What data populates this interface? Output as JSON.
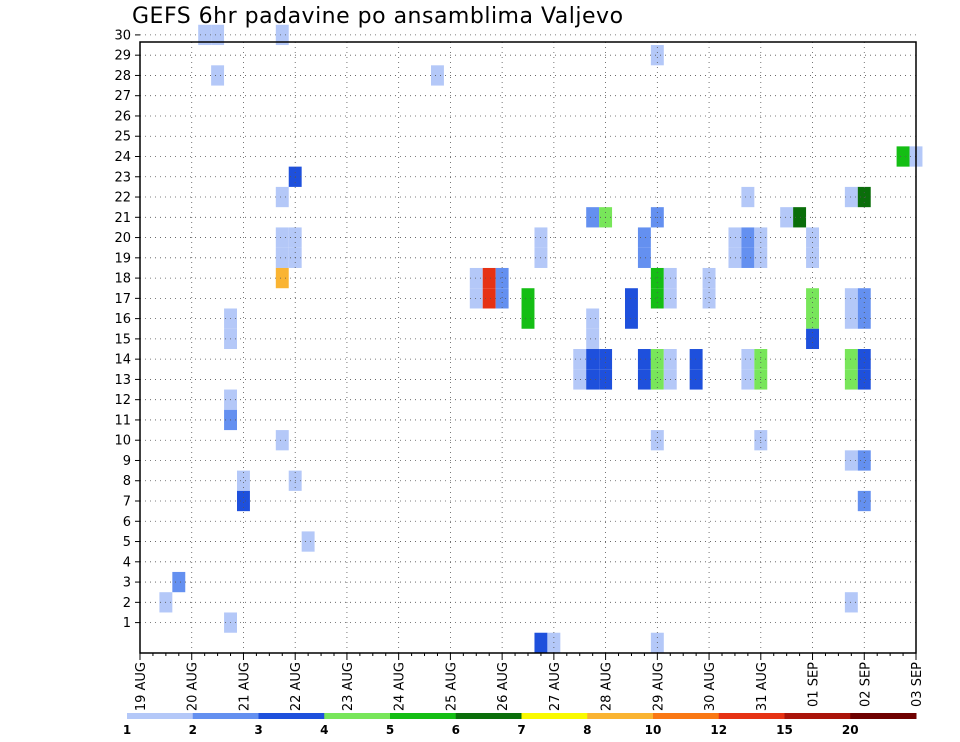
{
  "chart_data": {
    "type": "heatmap",
    "title": "GEFS 6hr padavine po ansamblima Valjevo",
    "y_categories": [
      1,
      2,
      3,
      4,
      5,
      6,
      7,
      8,
      9,
      10,
      11,
      12,
      13,
      14,
      15,
      16,
      17,
      18,
      19,
      20,
      21,
      22,
      23,
      24,
      25,
      26,
      27,
      28,
      29,
      30
    ],
    "x_tick_labels": [
      "19 AUG",
      "20 AUG",
      "21 AUG",
      "22 AUG",
      "23 AUG",
      "24 AUG",
      "25 AUG",
      "26 AUG",
      "27 AUG",
      "28 AUG",
      "29 AUG",
      "30 AUG",
      "31 AUG",
      "01 SEP",
      "02 SEP",
      "03 SEP"
    ],
    "x_range": [
      "2019-08-19 00Z",
      "2019-09-03 00Z"
    ],
    "time_step_hours": 6,
    "grid": true,
    "legend": {
      "position": "bottom",
      "labels": [
        "1",
        "2",
        "3",
        "4",
        "5",
        "6",
        "7",
        "8",
        "10",
        "12",
        "15",
        "20"
      ],
      "colors": [
        "#b4c8f8",
        "#6490f0",
        "#1e50dc",
        "#78e65a",
        "#14be14",
        "#0a6e0a",
        "#fafa00",
        "#fab432",
        "#fa7814",
        "#e63214",
        "#aa140a",
        "#6e0000"
      ]
    },
    "cells": [
      {
        "member": 30,
        "time": "20 AUG 06Z",
        "color": "#b4c8f8"
      },
      {
        "member": 30,
        "time": "20 AUG 12Z",
        "color": "#b4c8f8"
      },
      {
        "member": 30,
        "time": "21 AUG 18Z",
        "color": "#b4c8f8"
      },
      {
        "member": 29,
        "time": "29 AUG 00Z",
        "color": "#b4c8f8"
      },
      {
        "member": 28,
        "time": "20 AUG 12Z",
        "color": "#b4c8f8"
      },
      {
        "member": 28,
        "time": "24 AUG 18Z",
        "color": "#b4c8f8"
      },
      {
        "member": 24,
        "time": "02 SEP 18Z",
        "color": "#14be14"
      },
      {
        "member": 24,
        "time": "03 SEP 00Z",
        "color": "#b4c8f8"
      },
      {
        "member": 23,
        "time": "22 AUG 00Z",
        "color": "#1e50dc"
      },
      {
        "member": 22,
        "time": "21 AUG 18Z",
        "color": "#b4c8f8"
      },
      {
        "member": 22,
        "time": "30 AUG 18Z",
        "color": "#b4c8f8"
      },
      {
        "member": 22,
        "time": "01 SEP 18Z",
        "color": "#b4c8f8"
      },
      {
        "member": 22,
        "time": "02 SEP 00Z",
        "color": "#0a6e0a"
      },
      {
        "member": 21,
        "time": "27 AUG 18Z",
        "color": "#6490f0"
      },
      {
        "member": 21,
        "time": "28 AUG 00Z",
        "color": "#78e65a"
      },
      {
        "member": 21,
        "time": "29 AUG 00Z",
        "color": "#6490f0"
      },
      {
        "member": 21,
        "time": "31 AUG 12Z",
        "color": "#b4c8f8"
      },
      {
        "member": 21,
        "time": "31 AUG 18Z",
        "color": "#0a6e0a"
      },
      {
        "member": 20,
        "time": "21 AUG 18Z",
        "color": "#b4c8f8"
      },
      {
        "member": 20,
        "time": "22 AUG 00Z",
        "color": "#b4c8f8"
      },
      {
        "member": 20,
        "time": "26 AUG 18Z",
        "color": "#b4c8f8"
      },
      {
        "member": 20,
        "time": "28 AUG 18Z",
        "color": "#6490f0"
      },
      {
        "member": 20,
        "time": "30 AUG 12Z",
        "color": "#b4c8f8"
      },
      {
        "member": 20,
        "time": "30 AUG 18Z",
        "color": "#6490f0"
      },
      {
        "member": 20,
        "time": "31 AUG 00Z",
        "color": "#b4c8f8"
      },
      {
        "member": 20,
        "time": "01 SEP 00Z",
        "color": "#b4c8f8"
      },
      {
        "member": 19,
        "time": "21 AUG 18Z",
        "color": "#b4c8f8"
      },
      {
        "member": 19,
        "time": "22 AUG 00Z",
        "color": "#b4c8f8"
      },
      {
        "member": 19,
        "time": "26 AUG 18Z",
        "color": "#b4c8f8"
      },
      {
        "member": 19,
        "time": "28 AUG 18Z",
        "color": "#6490f0"
      },
      {
        "member": 19,
        "time": "30 AUG 12Z",
        "color": "#b4c8f8"
      },
      {
        "member": 19,
        "time": "30 AUG 18Z",
        "color": "#6490f0"
      },
      {
        "member": 19,
        "time": "31 AUG 00Z",
        "color": "#b4c8f8"
      },
      {
        "member": 19,
        "time": "01 SEP 00Z",
        "color": "#b4c8f8"
      },
      {
        "member": 18,
        "time": "21 AUG 18Z",
        "color": "#fab432"
      },
      {
        "member": 18,
        "time": "25 AUG 12Z",
        "color": "#b4c8f8"
      },
      {
        "member": 18,
        "time": "25 AUG 18Z",
        "color": "#e63214"
      },
      {
        "member": 18,
        "time": "26 AUG 00Z",
        "color": "#6490f0"
      },
      {
        "member": 18,
        "time": "29 AUG 00Z",
        "color": "#14be14"
      },
      {
        "member": 18,
        "time": "29 AUG 06Z",
        "color": "#b4c8f8"
      },
      {
        "member": 18,
        "time": "30 AUG 00Z",
        "color": "#b4c8f8"
      },
      {
        "member": 17,
        "time": "25 AUG 12Z",
        "color": "#b4c8f8"
      },
      {
        "member": 17,
        "time": "25 AUG 18Z",
        "color": "#e63214"
      },
      {
        "member": 17,
        "time": "26 AUG 00Z",
        "color": "#6490f0"
      },
      {
        "member": 17,
        "time": "29 AUG 00Z",
        "color": "#14be14"
      },
      {
        "member": 17,
        "time": "29 AUG 06Z",
        "color": "#b4c8f8"
      },
      {
        "member": 17,
        "time": "30 AUG 00Z",
        "color": "#b4c8f8"
      },
      {
        "member": 17,
        "time": "26 AUG 12Z",
        "color": "#14be14"
      },
      {
        "member": 17,
        "time": "28 AUG 12Z",
        "color": "#1e50dc"
      },
      {
        "member": 17,
        "time": "01 SEP 00Z",
        "color": "#78e65a"
      },
      {
        "member": 17,
        "time": "01 SEP 18Z",
        "color": "#b4c8f8"
      },
      {
        "member": 17,
        "time": "02 SEP 00Z",
        "color": "#6490f0"
      },
      {
        "member": 16,
        "time": "20 AUG 18Z",
        "color": "#b4c8f8"
      },
      {
        "member": 16,
        "time": "26 AUG 12Z",
        "color": "#14be14"
      },
      {
        "member": 16,
        "time": "27 AUG 18Z",
        "color": "#b4c8f8"
      },
      {
        "member": 16,
        "time": "28 AUG 12Z",
        "color": "#1e50dc"
      },
      {
        "member": 16,
        "time": "01 SEP 00Z",
        "color": "#78e65a"
      },
      {
        "member": 16,
        "time": "01 SEP 18Z",
        "color": "#b4c8f8"
      },
      {
        "member": 16,
        "time": "02 SEP 00Z",
        "color": "#6490f0"
      },
      {
        "member": 15,
        "time": "20 AUG 18Z",
        "color": "#b4c8f8"
      },
      {
        "member": 15,
        "time": "27 AUG 18Z",
        "color": "#b4c8f8"
      },
      {
        "member": 15,
        "time": "01 SEP 00Z",
        "color": "#1e50dc"
      },
      {
        "member": 14,
        "time": "27 AUG 12Z",
        "color": "#b4c8f8"
      },
      {
        "member": 14,
        "time": "27 AUG 18Z",
        "color": "#1e50dc"
      },
      {
        "member": 14,
        "time": "28 AUG 00Z",
        "color": "#1e50dc"
      },
      {
        "member": 14,
        "time": "28 AUG 18Z",
        "color": "#1e50dc"
      },
      {
        "member": 14,
        "time": "29 AUG 00Z",
        "color": "#78e65a"
      },
      {
        "member": 14,
        "time": "29 AUG 06Z",
        "color": "#b4c8f8"
      },
      {
        "member": 14,
        "time": "29 AUG 18Z",
        "color": "#1e50dc"
      },
      {
        "member": 14,
        "time": "30 AUG 18Z",
        "color": "#b4c8f8"
      },
      {
        "member": 14,
        "time": "31 AUG 00Z",
        "color": "#78e65a"
      },
      {
        "member": 14,
        "time": "01 SEP 18Z",
        "color": "#78e65a"
      },
      {
        "member": 14,
        "time": "02 SEP 00Z",
        "color": "#1e50dc"
      },
      {
        "member": 13,
        "time": "27 AUG 12Z",
        "color": "#b4c8f8"
      },
      {
        "member": 13,
        "time": "27 AUG 18Z",
        "color": "#1e50dc"
      },
      {
        "member": 13,
        "time": "28 AUG 00Z",
        "color": "#1e50dc"
      },
      {
        "member": 13,
        "time": "28 AUG 18Z",
        "color": "#1e50dc"
      },
      {
        "member": 13,
        "time": "29 AUG 00Z",
        "color": "#78e65a"
      },
      {
        "member": 13,
        "time": "29 AUG 06Z",
        "color": "#b4c8f8"
      },
      {
        "member": 13,
        "time": "29 AUG 18Z",
        "color": "#1e50dc"
      },
      {
        "member": 13,
        "time": "30 AUG 18Z",
        "color": "#b4c8f8"
      },
      {
        "member": 13,
        "time": "31 AUG 00Z",
        "color": "#78e65a"
      },
      {
        "member": 13,
        "time": "01 SEP 18Z",
        "color": "#78e65a"
      },
      {
        "member": 13,
        "time": "02 SEP 00Z",
        "color": "#1e50dc"
      },
      {
        "member": 12,
        "time": "20 AUG 18Z",
        "color": "#b4c8f8"
      },
      {
        "member": 11,
        "time": "20 AUG 18Z",
        "color": "#6490f0"
      },
      {
        "member": 10,
        "time": "21 AUG 18Z",
        "color": "#b4c8f8"
      },
      {
        "member": 10,
        "time": "29 AUG 00Z",
        "color": "#b4c8f8"
      },
      {
        "member": 10,
        "time": "31 AUG 00Z",
        "color": "#b4c8f8"
      },
      {
        "member": 9,
        "time": "01 SEP 18Z",
        "color": "#b4c8f8"
      },
      {
        "member": 9,
        "time": "02 SEP 00Z",
        "color": "#6490f0"
      },
      {
        "member": 8,
        "time": "21 AUG 00Z",
        "color": "#b4c8f8"
      },
      {
        "member": 8,
        "time": "22 AUG 00Z",
        "color": "#b4c8f8"
      },
      {
        "member": 7,
        "time": "21 AUG 00Z",
        "color": "#1e50dc"
      },
      {
        "member": 7,
        "time": "02 SEP 00Z",
        "color": "#6490f0"
      },
      {
        "member": 5,
        "time": "22 AUG 06Z",
        "color": "#b4c8f8"
      },
      {
        "member": 3,
        "time": "19 AUG 18Z",
        "color": "#6490f0"
      },
      {
        "member": 2,
        "time": "19 AUG 12Z",
        "color": "#b4c8f8"
      },
      {
        "member": 2,
        "time": "01 SEP 18Z",
        "color": "#b4c8f8"
      },
      {
        "member": 1,
        "time": "20 AUG 18Z",
        "color": "#b4c8f8"
      },
      {
        "member": 0,
        "time": "26 AUG 18Z",
        "color": "#1e50dc"
      },
      {
        "member": 0,
        "time": "27 AUG 00Z",
        "color": "#b4c8f8"
      },
      {
        "member": 0,
        "time": "29 AUG 00Z",
        "color": "#b4c8f8"
      }
    ]
  }
}
